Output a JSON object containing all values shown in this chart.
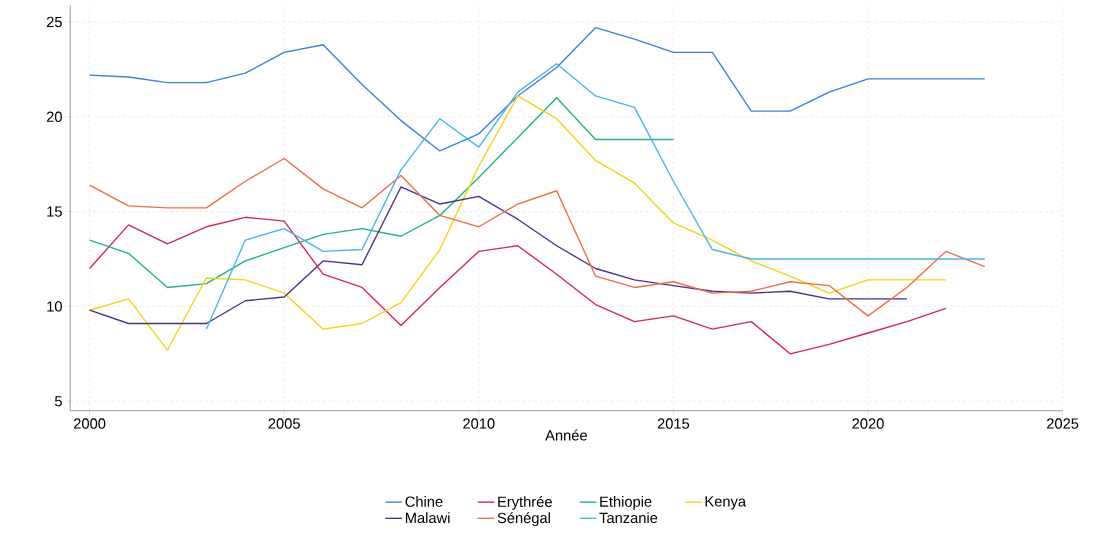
{
  "chart_data": {
    "type": "line",
    "xlabel": "Année",
    "xlim": [
      1999.5,
      2025
    ],
    "ylim": [
      4.5,
      25.9
    ],
    "xticks": [
      2000,
      2005,
      2010,
      2015,
      2020,
      2025
    ],
    "yticks": [
      5,
      10,
      15,
      20,
      25
    ],
    "grid": true,
    "legend": "bottom",
    "line_style": "solid",
    "marker": "none",
    "series": [
      {
        "name": "Chine",
        "color": "#3a7fe0",
        "x": [
          2000,
          2001,
          2002,
          2003,
          2004,
          2005,
          2006,
          2007,
          2008,
          2009,
          2010,
          2011,
          2012,
          2013,
          2014,
          2015,
          2016,
          2017,
          2018,
          2019,
          2020,
          2021,
          2022,
          2023
        ],
        "values": [
          22.2,
          22.1,
          21.8,
          21.8,
          22.3,
          23.4,
          23.8,
          21.7,
          19.8,
          18.2,
          19.1,
          21.1,
          22.6,
          24.7,
          24.1,
          23.4,
          23.4,
          20.3,
          20.3,
          21.3,
          22.0,
          22.0,
          22.0,
          22.0
        ]
      },
      {
        "name": "Erythrée",
        "color": "#d6245a",
        "x": [
          2000,
          2001,
          2002,
          2003,
          2004,
          2005,
          2006,
          2007,
          2008,
          2009,
          2010,
          2011,
          2012,
          2013,
          2014,
          2015,
          2016,
          2017,
          2018,
          2019,
          2020,
          2021,
          2022
        ],
        "values": [
          12.0,
          14.3,
          13.3,
          14.2,
          14.7,
          14.5,
          11.7,
          11.0,
          9.0,
          11.0,
          12.9,
          13.2,
          11.7,
          10.1,
          9.2,
          9.5,
          8.8,
          9.2,
          7.5,
          8.0,
          8.6,
          9.2,
          9.9
        ]
      },
      {
        "name": "Ethiopie",
        "color": "#1cb67f",
        "x": [
          2000,
          2001,
          2002,
          2003,
          2004,
          2005,
          2006,
          2007,
          2008,
          2009,
          2010,
          2011,
          2012,
          2013,
          2014,
          2015
        ],
        "values": [
          13.5,
          12.8,
          11.0,
          11.2,
          12.4,
          13.1,
          13.8,
          14.1,
          13.7,
          14.8,
          16.8,
          18.9,
          21.0,
          18.8,
          18.8,
          18.8
        ]
      },
      {
        "name": "Kenya",
        "color": "#f2d40f",
        "x": [
          2000,
          2001,
          2002,
          2003,
          2004,
          2005,
          2006,
          2007,
          2008,
          2009,
          2010,
          2011,
          2012,
          2013,
          2014,
          2015,
          2016,
          2017,
          2018,
          2019,
          2020,
          2021,
          2022
        ],
        "values": [
          9.8,
          10.4,
          7.7,
          11.5,
          11.4,
          10.7,
          8.8,
          9.1,
          10.2,
          13.0,
          17.4,
          21.1,
          19.9,
          17.7,
          16.5,
          14.4,
          13.5,
          12.4,
          11.6,
          10.7,
          11.4,
          11.4,
          11.4
        ]
      },
      {
        "name": "Malawi",
        "color": "#4b2f8f",
        "x": [
          2000,
          2001,
          2002,
          2003,
          2004,
          2005,
          2006,
          2007,
          2008,
          2009,
          2010,
          2011,
          2012,
          2013,
          2014,
          2015,
          2016,
          2017,
          2018,
          2019,
          2020,
          2021
        ],
        "values": [
          9.8,
          9.1,
          9.1,
          9.1,
          10.3,
          10.5,
          12.4,
          12.2,
          16.3,
          15.4,
          15.8,
          14.6,
          13.2,
          12.0,
          11.4,
          11.1,
          10.8,
          10.7,
          10.8,
          10.4,
          10.4,
          10.4
        ]
      },
      {
        "name": "Sénégal",
        "color": "#f06b45",
        "x": [
          2000,
          2001,
          2002,
          2003,
          2004,
          2005,
          2006,
          2007,
          2008,
          2009,
          2010,
          2011,
          2012,
          2013,
          2014,
          2015,
          2016,
          2017,
          2018,
          2019,
          2020,
          2021,
          2022,
          2023
        ],
        "values": [
          16.4,
          15.3,
          15.2,
          15.2,
          16.6,
          17.8,
          16.2,
          15.2,
          16.9,
          14.8,
          14.2,
          15.4,
          16.1,
          11.6,
          11.0,
          11.3,
          10.7,
          10.8,
          11.3,
          11.1,
          9.5,
          11.0,
          12.9,
          12.1
        ]
      },
      {
        "name": "Tanzanie",
        "color": "#49b4ea",
        "x": [
          2003,
          2004,
          2005,
          2006,
          2007,
          2008,
          2009,
          2010,
          2011,
          2012,
          2013,
          2014,
          2015,
          2016,
          2017,
          2018,
          2019,
          2020,
          2021,
          2022,
          2023
        ],
        "values": [
          8.8,
          13.5,
          14.1,
          12.9,
          13.0,
          17.2,
          19.9,
          18.4,
          21.3,
          22.8,
          21.1,
          20.5,
          16.6,
          13.0,
          12.5,
          12.5,
          12.5,
          12.5,
          12.5,
          12.5,
          12.5
        ]
      }
    ]
  }
}
